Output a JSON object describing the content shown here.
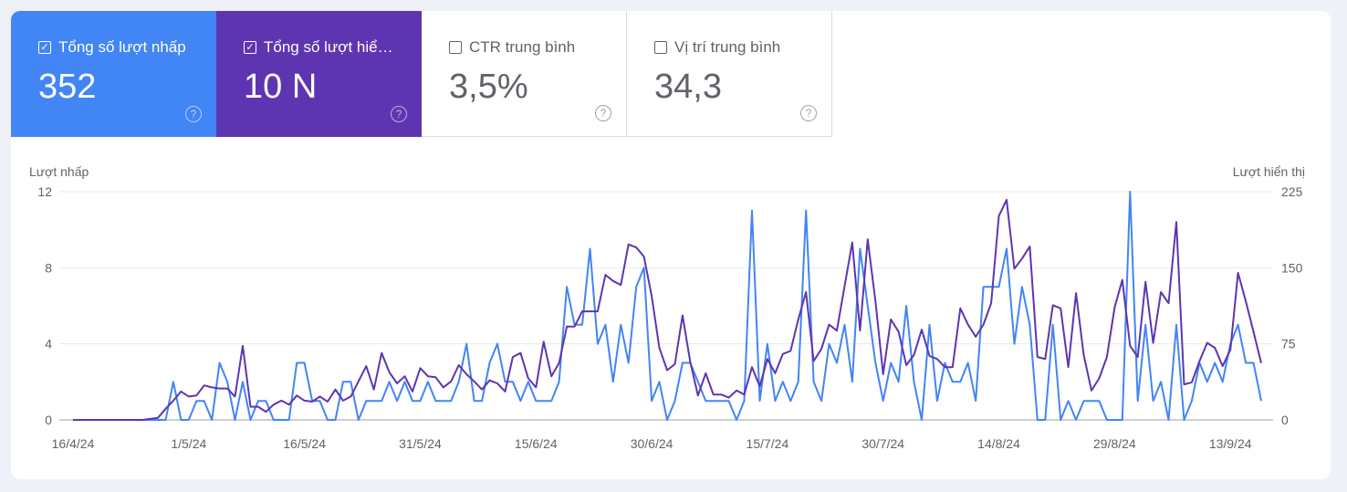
{
  "colors": {
    "clicks": "#4285f4",
    "impressions": "#5e35b1",
    "grid": "#e8eaed",
    "axis": "#9aa0a6",
    "page_bg": "#eef2f8"
  },
  "metrics": [
    {
      "label": "Tổng số lượt nhấp",
      "value": "352",
      "checked": true,
      "icon": "help-icon"
    },
    {
      "label": "Tổng số lượt hiể…",
      "value": "10 N",
      "checked": true,
      "icon": "help-icon"
    },
    {
      "label": "CTR trung bình",
      "value": "3,5%",
      "checked": false,
      "icon": "help-icon"
    },
    {
      "label": "Vị trí trung bình",
      "value": "34,3",
      "checked": false,
      "icon": "help-icon"
    }
  ],
  "chart_data": {
    "type": "line",
    "y_left_label": "Lượt nhấp",
    "y_right_label": "Lượt hiển thị",
    "y_left_ticks": [
      "0",
      "4",
      "8",
      "12"
    ],
    "y_right_ticks": [
      "0",
      "75",
      "150",
      "225"
    ],
    "ylim_left": [
      0,
      12
    ],
    "ylim_right": [
      0,
      225
    ],
    "x_tick_labels": [
      "16/4/24",
      "1/5/24",
      "16/5/24",
      "31/5/24",
      "15/6/24",
      "30/6/24",
      "15/7/24",
      "30/7/24",
      "14/8/24",
      "29/8/24",
      "13/9/24"
    ],
    "x_ticks": [
      "2024-04-16",
      "2024-05-01",
      "2024-05-16",
      "2024-05-31",
      "2024-06-15",
      "2024-06-30",
      "2024-07-15",
      "2024-07-30",
      "2024-08-14",
      "2024-08-29",
      "2024-09-13"
    ],
    "grid": true,
    "x": [
      "2024-04-16",
      "2024-04-17",
      "2024-04-18",
      "2024-04-19",
      "2024-04-20",
      "2024-04-21",
      "2024-04-22",
      "2024-04-23",
      "2024-04-24",
      "2024-04-25",
      "2024-04-26",
      "2024-04-27",
      "2024-04-28",
      "2024-04-29",
      "2024-04-30",
      "2024-05-01",
      "2024-05-02",
      "2024-05-03",
      "2024-05-04",
      "2024-05-05",
      "2024-05-06",
      "2024-05-07",
      "2024-05-08",
      "2024-05-09",
      "2024-05-10",
      "2024-05-11",
      "2024-05-12",
      "2024-05-13",
      "2024-05-14",
      "2024-05-15",
      "2024-05-16",
      "2024-05-17",
      "2024-05-18",
      "2024-05-19",
      "2024-05-20",
      "2024-05-21",
      "2024-05-22",
      "2024-05-23",
      "2024-05-24",
      "2024-05-25",
      "2024-05-26",
      "2024-05-27",
      "2024-05-28",
      "2024-05-29",
      "2024-05-30",
      "2024-05-31",
      "2024-06-01",
      "2024-06-02",
      "2024-06-03",
      "2024-06-04",
      "2024-06-05",
      "2024-06-06",
      "2024-06-07",
      "2024-06-08",
      "2024-06-09",
      "2024-06-10",
      "2024-06-11",
      "2024-06-12",
      "2024-06-13",
      "2024-06-14",
      "2024-06-15",
      "2024-06-16",
      "2024-06-17",
      "2024-06-18",
      "2024-06-19",
      "2024-06-20",
      "2024-06-21",
      "2024-06-22",
      "2024-06-23",
      "2024-06-24",
      "2024-06-25",
      "2024-06-26",
      "2024-06-27",
      "2024-06-28",
      "2024-06-29",
      "2024-06-30",
      "2024-07-01",
      "2024-07-02",
      "2024-07-03",
      "2024-07-04",
      "2024-07-05",
      "2024-07-06",
      "2024-07-07",
      "2024-07-08",
      "2024-07-09",
      "2024-07-10",
      "2024-07-11",
      "2024-07-12",
      "2024-07-13",
      "2024-07-14",
      "2024-07-15",
      "2024-07-16",
      "2024-07-17",
      "2024-07-18",
      "2024-07-19",
      "2024-07-20",
      "2024-07-21",
      "2024-07-22",
      "2024-07-23",
      "2024-07-24",
      "2024-07-25",
      "2024-07-26",
      "2024-07-27",
      "2024-07-28",
      "2024-07-29",
      "2024-07-30",
      "2024-07-31",
      "2024-08-01",
      "2024-08-02",
      "2024-08-03",
      "2024-08-04",
      "2024-08-05",
      "2024-08-06",
      "2024-08-07",
      "2024-08-08",
      "2024-08-09",
      "2024-08-10",
      "2024-08-11",
      "2024-08-12",
      "2024-08-13",
      "2024-08-14",
      "2024-08-15",
      "2024-08-16",
      "2024-08-17",
      "2024-08-18",
      "2024-08-19",
      "2024-08-20",
      "2024-08-21",
      "2024-08-22",
      "2024-08-23",
      "2024-08-24",
      "2024-08-25",
      "2024-08-26",
      "2024-08-27",
      "2024-08-28",
      "2024-08-29",
      "2024-08-30",
      "2024-08-31",
      "2024-09-01",
      "2024-09-02",
      "2024-09-03",
      "2024-09-04",
      "2024-09-05",
      "2024-09-06",
      "2024-09-07",
      "2024-09-08",
      "2024-09-09",
      "2024-09-10",
      "2024-09-11",
      "2024-09-12",
      "2024-09-13",
      "2024-09-14",
      "2024-09-15",
      "2024-09-16",
      "2024-09-17"
    ],
    "series": [
      {
        "name": "Lượt nhấp",
        "axis": "left",
        "color": "#4285f4",
        "values": [
          0,
          0,
          0,
          0,
          0,
          0,
          0,
          0,
          0,
          0,
          0,
          0,
          0,
          2,
          0,
          0,
          1,
          1,
          0,
          3,
          2,
          0,
          2,
          0,
          1,
          1,
          0,
          0,
          0,
          3,
          3,
          1,
          1,
          0,
          0,
          2,
          2,
          0,
          1,
          1,
          1,
          2,
          1,
          2,
          1,
          1,
          2,
          1,
          1,
          1,
          2,
          4,
          1,
          1,
          3,
          4,
          2,
          2,
          1,
          2,
          1,
          1,
          1,
          2,
          7,
          5,
          5,
          9,
          4,
          5,
          2,
          5,
          3,
          7,
          8,
          1,
          2,
          0,
          1,
          3,
          3,
          2,
          1,
          1,
          1,
          1,
          0,
          1,
          11,
          1,
          4,
          1,
          2,
          1,
          2,
          11,
          2,
          1,
          4,
          3,
          5,
          2,
          9,
          6,
          3,
          1,
          3,
          2,
          6,
          2,
          0,
          5,
          1,
          3,
          2,
          2,
          3,
          1,
          7,
          7,
          7,
          9,
          4,
          7,
          5,
          0,
          0,
          5,
          0,
          1,
          0,
          1,
          1,
          1,
          0,
          0,
          0,
          12,
          1,
          5,
          1,
          2,
          0,
          5,
          0,
          1,
          3,
          2,
          3,
          2,
          4,
          5,
          3,
          3,
          1
        ]
      },
      {
        "name": "Lượt hiển thị",
        "axis": "right",
        "color": "#5e35b1",
        "values": [
          0,
          0,
          0,
          0,
          0,
          0,
          0,
          0,
          0,
          0,
          1,
          2,
          11,
          19,
          28,
          23,
          24,
          34,
          32,
          31,
          31,
          23,
          73,
          13,
          13,
          8,
          15,
          19,
          15,
          24,
          19,
          18,
          23,
          18,
          30,
          19,
          23,
          38,
          53,
          30,
          66,
          47,
          36,
          43,
          28,
          51,
          43,
          42,
          32,
          38,
          54,
          45,
          38,
          30,
          39,
          36,
          28,
          62,
          66,
          41,
          32,
          77,
          43,
          56,
          92,
          92,
          107,
          107,
          107,
          143,
          137,
          133,
          173,
          170,
          161,
          122,
          71,
          49,
          55,
          103,
          57,
          24,
          46,
          25,
          25,
          22,
          29,
          25,
          52,
          33,
          60,
          46,
          65,
          68,
          99,
          126,
          58,
          70,
          94,
          88,
          132,
          175,
          88,
          178,
          117,
          45,
          99,
          87,
          54,
          64,
          89,
          63,
          60,
          52,
          52,
          110,
          94,
          82,
          94,
          115,
          201,
          217,
          149,
          159,
          171,
          62,
          60,
          113,
          110,
          52,
          125,
          64,
          29,
          41,
          62,
          111,
          138,
          73,
          62,
          136,
          76,
          126,
          115,
          195,
          35,
          37,
          58,
          76,
          71,
          53,
          69,
          145,
          117,
          87,
          56
        ]
      }
    ]
  }
}
